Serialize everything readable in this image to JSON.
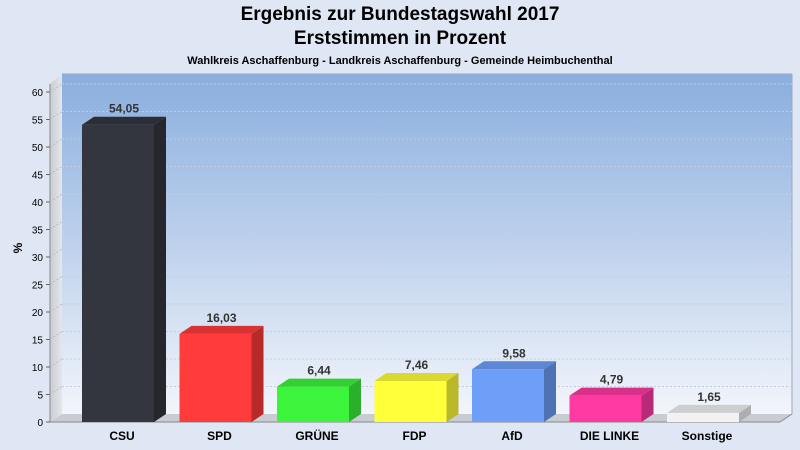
{
  "chart_data": {
    "type": "bar",
    "title": "Ergebnis zur Bundestagswahl 2017",
    "subtitle": "Erststimmen in Prozent",
    "subtitle2": "Wahlkreis Aschaffenburg - Landkreis Aschaffenburg - Gemeinde Heimbuchenthal",
    "ylabel": "%",
    "xlabel": "",
    "ylim": [
      0,
      60
    ],
    "yticks": [
      0,
      5,
      10,
      15,
      20,
      25,
      30,
      35,
      40,
      45,
      50,
      55,
      60
    ],
    "grid": true,
    "categories": [
      "CSU",
      "SPD",
      "GRÜNE",
      "FDP",
      "AfD",
      "DIE LINKE",
      "Sonstige"
    ],
    "values": [
      54.05,
      16.03,
      6.44,
      7.46,
      9.58,
      4.79,
      1.65
    ],
    "value_labels": [
      "54,05",
      "16,03",
      "6,44",
      "7,46",
      "9,58",
      "4,79",
      "1,65"
    ],
    "colors": [
      "#33363e",
      "#ff3b3b",
      "#3cf43c",
      "#ffff3a",
      "#6d9ef8",
      "#ff3aa2",
      "#f2f2f2"
    ]
  }
}
